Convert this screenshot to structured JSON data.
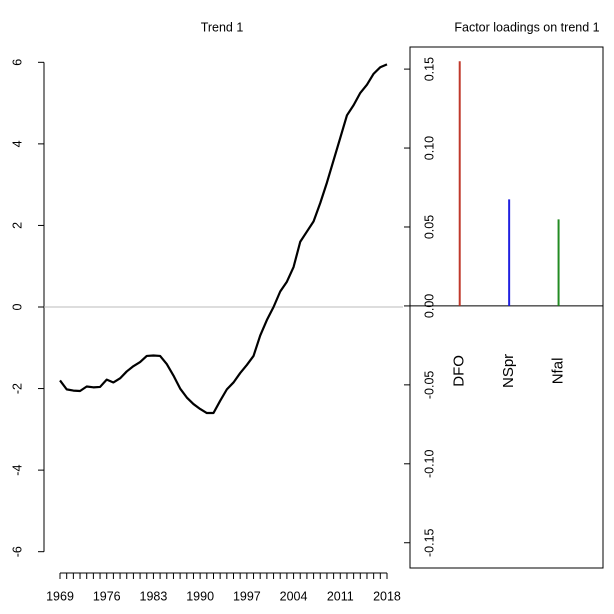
{
  "chart_data": [
    {
      "type": "line",
      "title": "Trend 1",
      "x": [
        1969,
        1970,
        1971,
        1972,
        1973,
        1974,
        1975,
        1976,
        1977,
        1978,
        1979,
        1980,
        1981,
        1982,
        1983,
        1984,
        1985,
        1986,
        1987,
        1988,
        1989,
        1990,
        1991,
        1992,
        1993,
        1994,
        1995,
        1996,
        1997,
        1998,
        1999,
        2000,
        2001,
        2002,
        2003,
        2004,
        2005,
        2006,
        2007,
        2008,
        2009,
        2010,
        2011,
        2012,
        2013,
        2014,
        2015,
        2016,
        2017,
        2018
      ],
      "series": [
        {
          "color": "#000000",
          "values": [
            -1.8,
            -2.02,
            -2.05,
            -2.06,
            -1.95,
            -1.97,
            -1.96,
            -1.78,
            -1.85,
            -1.75,
            -1.58,
            -1.45,
            -1.35,
            -1.2,
            -1.19,
            -1.2,
            -1.4,
            -1.68,
            -2.0,
            -2.22,
            -2.38,
            -2.5,
            -2.6,
            -2.6,
            -2.3,
            -2.02,
            -1.85,
            -1.62,
            -1.42,
            -1.2,
            -0.7,
            -0.32,
            0.0,
            0.38,
            0.62,
            0.98,
            1.6,
            1.85,
            2.1,
            2.55,
            3.05,
            3.6,
            4.15,
            4.7,
            4.95,
            5.25,
            5.45,
            5.72,
            5.88,
            5.95
          ]
        }
      ],
      "xlim": [
        1966.6,
        2020.4
      ],
      "xticks": [
        1969,
        1976,
        1983,
        1990,
        1997,
        2004,
        2011,
        2018
      ],
      "xminor_ticks": [
        1969,
        1970,
        1971,
        1972,
        1973,
        1974,
        1975,
        1976,
        1977,
        1978,
        1979,
        1980,
        1981,
        1982,
        1983,
        1984,
        1985,
        1986,
        1987,
        1988,
        1989,
        1990,
        1991,
        1992,
        1993,
        1994,
        1995,
        1996,
        1997,
        1998,
        1999,
        2000,
        2001,
        2002,
        2003,
        2004,
        2005,
        2006,
        2007,
        2008,
        2009,
        2010,
        2011,
        2012,
        2013,
        2014,
        2015,
        2016,
        2017,
        2018
      ],
      "ylim": [
        -6.4,
        6.4
      ],
      "yticks": [
        -6,
        -4,
        -2,
        0,
        2,
        4,
        6
      ],
      "reference_line": 0,
      "reference_color": "#bbbbbb"
    },
    {
      "type": "bar",
      "title": "Factor loadings on trend 1",
      "categories": [
        "DFO",
        "NSpr",
        "Nfal"
      ],
      "values": [
        0.155,
        0.0675,
        0.0548
      ],
      "colors": [
        "#c0392b",
        "#2020e0",
        "#238b23"
      ],
      "ylim": [
        -0.166,
        0.164
      ],
      "yticks": [
        {
          "value": -0.15,
          "label": "-0.15"
        },
        {
          "value": -0.1,
          "label": "-0.10"
        },
        {
          "value": -0.05,
          "label": "-0.05"
        },
        {
          "value": 0,
          "label": "0.00"
        },
        {
          "value": 0.05,
          "label": "0.05"
        },
        {
          "value": 0.1,
          "label": "0.10"
        },
        {
          "value": 0.15,
          "label": "0.15"
        }
      ],
      "reference_line": 0,
      "reference_color": "#000000"
    }
  ]
}
